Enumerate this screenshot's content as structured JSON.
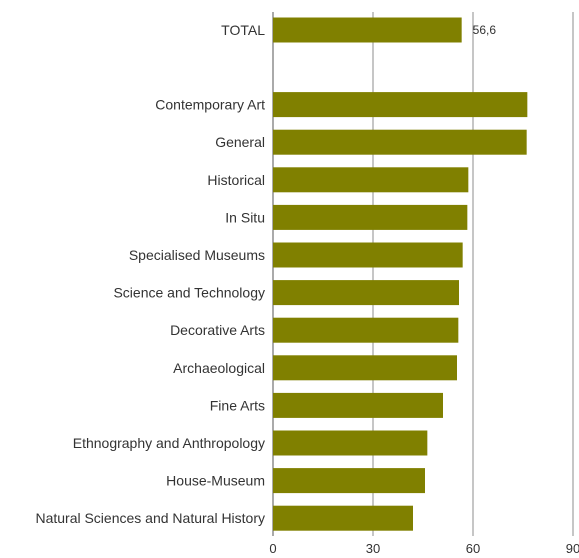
{
  "chart_data": {
    "type": "bar",
    "orientation": "horizontal",
    "title": "",
    "xlabel": "",
    "ylabel": "",
    "xlim": [
      0,
      90
    ],
    "x_ticks": [
      0,
      30,
      60,
      90
    ],
    "x_tick_labels": [
      "0",
      "30",
      "60",
      "90"
    ],
    "grid": "vertical",
    "legend": "none",
    "bar_color": "#808000",
    "categories": [
      "TOTAL",
      "Contemporary Art",
      "General",
      "Historical",
      "In Situ",
      "Specialised Museums",
      "Science and Technology",
      "Decorative Arts",
      "Archaeological",
      "Fine Arts",
      "Ethnography and Anthropology",
      "House-Museum",
      "Natural Sciences and Natural History"
    ],
    "values": [
      56.6,
      76.3,
      76.1,
      58.6,
      58.3,
      56.9,
      55.8,
      55.6,
      55.2,
      51.0,
      46.3,
      45.6,
      42.0
    ],
    "data_labels": [
      "56,6",
      "",
      "",
      "",
      "",
      "",
      "",
      "",
      "",
      "",
      "",
      "",
      ""
    ],
    "group_gap_after": [
      0
    ]
  }
}
